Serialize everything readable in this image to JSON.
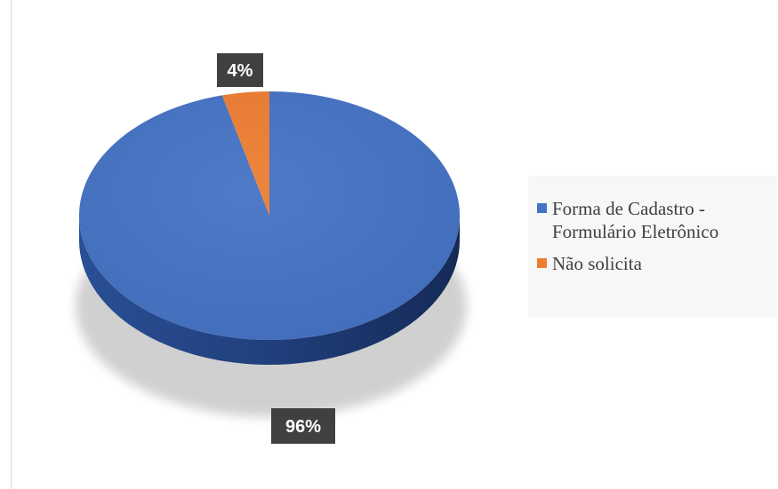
{
  "chart_data": {
    "type": "pie",
    "title": "",
    "labels": [
      "Forma de Cadastro - Formulário Eletrônico",
      "Não solicita"
    ],
    "values": [
      96,
      4
    ],
    "data_labels": [
      "96%",
      "4%"
    ],
    "colors": [
      "#4472c4",
      "#ed7d31"
    ],
    "legend_position": "right",
    "style": "3d"
  },
  "legend": {
    "items": [
      {
        "label": "Forma de Cadastro - Formulário Eletrônico",
        "color": "#4472c4"
      },
      {
        "label": "Não solicita",
        "color": "#ed7d31"
      }
    ]
  }
}
